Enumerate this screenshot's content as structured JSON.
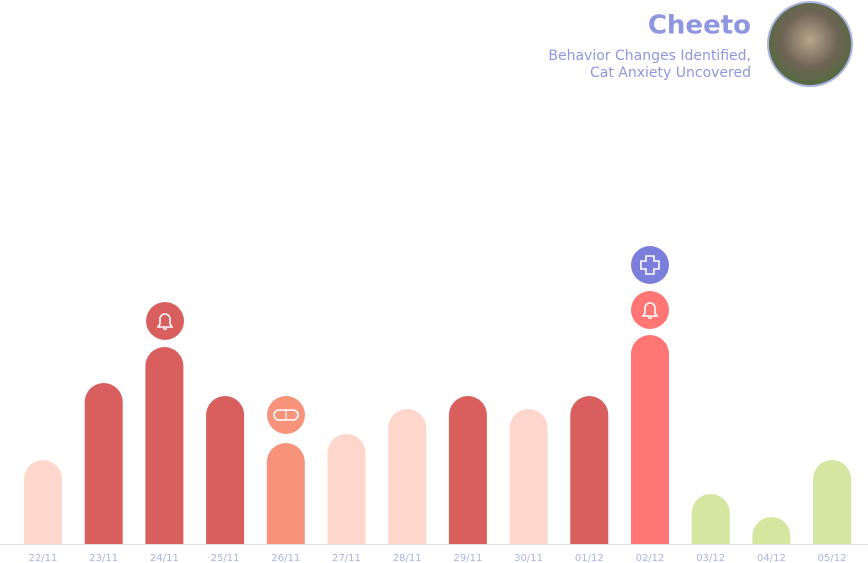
{
  "chart_data": {
    "type": "bar",
    "title": "Cheeto",
    "subtitle": [
      "Behavior Changes Identified,",
      "Cat Anxiety Uncovered"
    ],
    "categories": [
      "22/11",
      "23/11",
      "24/11",
      "25/11",
      "26/11",
      "27/11",
      "28/11",
      "29/11",
      "30/11",
      "01/12",
      "02/12",
      "03/12",
      "04/12",
      "05/12"
    ],
    "values": [
      84,
      161,
      197,
      148,
      101,
      110,
      135,
      148,
      135,
      148,
      209,
      50,
      27,
      84
    ],
    "colors": [
      "#ffd6cc",
      "#d95f5f",
      "#d95f5f",
      "#d95f5f",
      "#f7937a",
      "#ffd6cc",
      "#ffd6cc",
      "#d95f5f",
      "#ffd6cc",
      "#d95f5f",
      "#ff7675",
      "#d4e6a0",
      "#d4e6a0",
      "#d4e6a0"
    ],
    "ylim": [
      0,
      220
    ]
  }
}
